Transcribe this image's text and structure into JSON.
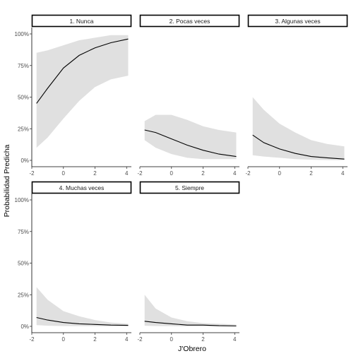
{
  "chart_data": {
    "type": "line",
    "layout": "facet_wrap",
    "xlabel": "J'Obrero",
    "ylabel": "Probabilidad Predicha",
    "xlim": [
      -2,
      4.3
    ],
    "ylim": [
      0,
      1
    ],
    "x_ticks": [
      -2,
      0,
      2,
      4
    ],
    "y_ticks": [
      0,
      0.25,
      0.5,
      0.75,
      1
    ],
    "y_tick_labels": [
      "0%",
      "25%",
      "50%",
      "75%",
      "100%"
    ],
    "ribbon_color": "#e0e0e0",
    "line_color": "#000000",
    "grid": false,
    "panels": [
      {
        "title": "1. Nunca",
        "x": [
          -1.7,
          -1,
          0,
          1,
          2,
          3,
          4.1
        ],
        "y": [
          0.45,
          0.57,
          0.73,
          0.83,
          0.89,
          0.93,
          0.96
        ],
        "lower": [
          0.1,
          0.18,
          0.33,
          0.47,
          0.58,
          0.64,
          0.67
        ],
        "upper": [
          0.85,
          0.87,
          0.91,
          0.95,
          0.97,
          0.99,
          0.99
        ]
      },
      {
        "title": "2. Pocas veces",
        "x": [
          -1.7,
          -1,
          0,
          1,
          2,
          3,
          4.1
        ],
        "y": [
          0.24,
          0.22,
          0.17,
          0.12,
          0.08,
          0.05,
          0.03
        ],
        "lower": [
          0.16,
          0.1,
          0.05,
          0.02,
          0.01,
          0.01,
          0.01
        ],
        "upper": [
          0.31,
          0.36,
          0.36,
          0.32,
          0.27,
          0.24,
          0.22
        ]
      },
      {
        "title": "3. Algunas veces",
        "x": [
          -1.7,
          -1,
          0,
          1,
          2,
          3,
          4.1
        ],
        "y": [
          0.2,
          0.14,
          0.09,
          0.055,
          0.03,
          0.02,
          0.01
        ],
        "lower": [
          0.04,
          0.03,
          0.02,
          0.01,
          0.005,
          0.002,
          0.001
        ],
        "upper": [
          0.5,
          0.4,
          0.29,
          0.22,
          0.16,
          0.13,
          0.11
        ]
      },
      {
        "title": "4. Muchas veces",
        "x": [
          -1.7,
          -1,
          0,
          1,
          2,
          3,
          4.1
        ],
        "y": [
          0.07,
          0.05,
          0.03,
          0.02,
          0.015,
          0.01,
          0.008
        ],
        "lower": [
          0.01,
          0.005,
          0.002,
          0.001,
          0.001,
          0.0,
          0.0
        ],
        "upper": [
          0.31,
          0.21,
          0.12,
          0.08,
          0.05,
          0.03,
          0.02
        ]
      },
      {
        "title": "5. Siempre",
        "x": [
          -1.7,
          -1,
          0,
          1,
          2,
          3,
          4.1
        ],
        "y": [
          0.04,
          0.03,
          0.02,
          0.01,
          0.01,
          0.005,
          0.003
        ],
        "lower": [
          0.005,
          0.002,
          0.001,
          0.0,
          0.0,
          0.0,
          0.0
        ],
        "upper": [
          0.25,
          0.14,
          0.07,
          0.04,
          0.025,
          0.02,
          0.015
        ]
      }
    ]
  }
}
